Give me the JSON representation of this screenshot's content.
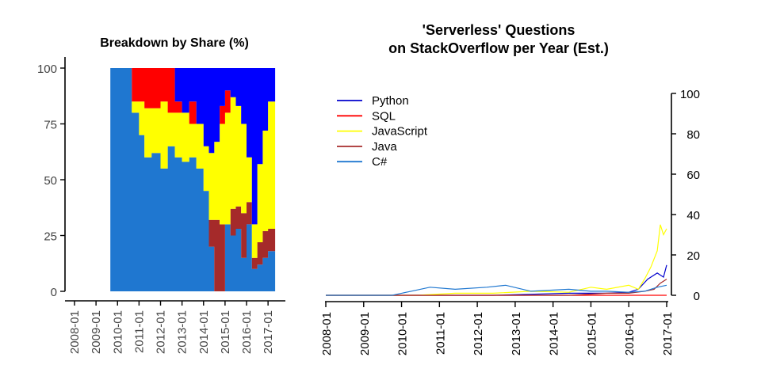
{
  "chart_data": [
    {
      "type": "area",
      "stacked": "percent",
      "title": "Breakdown by Share (%)",
      "xlabel": "",
      "ylabel": "",
      "ylim": [
        0,
        100
      ],
      "y_ticks": [
        "0",
        "25",
        "50",
        "75",
        "100"
      ],
      "x_ticks": [
        "2008-01",
        "2009-01",
        "2010-01",
        "2011-01",
        "2012-01",
        "2013-01",
        "2014-01",
        "2015-01",
        "2016-01",
        "2017-01"
      ],
      "grid": false,
      "legend": "none",
      "x": [
        "2009-09",
        "2010-01",
        "2010-06",
        "2010-09",
        "2011-01",
        "2011-04",
        "2011-08",
        "2012-01",
        "2012-05",
        "2012-09",
        "2013-01",
        "2013-05",
        "2013-09",
        "2014-01",
        "2014-04",
        "2014-07",
        "2014-10",
        "2015-01",
        "2015-04",
        "2015-07",
        "2015-10",
        "2016-01",
        "2016-04",
        "2016-07",
        "2016-10",
        "2017-01"
      ],
      "series": [
        {
          "name": "C#",
          "color": "#1f77d0",
          "values": [
            100,
            100,
            100,
            80,
            70,
            60,
            62,
            55,
            65,
            60,
            58,
            60,
            55,
            45,
            20,
            0,
            0,
            30,
            25,
            28,
            15,
            30,
            10,
            12,
            15,
            18
          ]
        },
        {
          "name": "Java",
          "color": "#a52a2a",
          "values": [
            0,
            0,
            0,
            0,
            0,
            0,
            0,
            0,
            0,
            0,
            0,
            0,
            0,
            0,
            12,
            32,
            30,
            0,
            12,
            10,
            20,
            10,
            5,
            10,
            12,
            10
          ]
        },
        {
          "name": "JavaScript",
          "color": "#ffff00",
          "values": [
            0,
            0,
            0,
            5,
            15,
            22,
            20,
            30,
            15,
            20,
            22,
            15,
            20,
            20,
            30,
            35,
            45,
            50,
            50,
            45,
            40,
            20,
            15,
            35,
            45,
            57
          ]
        },
        {
          "name": "SQL",
          "color": "#ff0000",
          "values": [
            0,
            0,
            0,
            15,
            15,
            18,
            18,
            15,
            20,
            5,
            0,
            10,
            0,
            0,
            0,
            0,
            8,
            10,
            0,
            0,
            0,
            0,
            0,
            0,
            0,
            0
          ]
        },
        {
          "name": "Python",
          "color": "#0000ff",
          "values": [
            0,
            0,
            0,
            0,
            0,
            0,
            0,
            0,
            0,
            15,
            20,
            15,
            25,
            35,
            38,
            33,
            17,
            10,
            13,
            17,
            25,
            40,
            70,
            43,
            28,
            15
          ]
        }
      ]
    },
    {
      "type": "line",
      "title": "'Serverless' Questions\non StackOverflow per Year (Est.)",
      "xlabel": "",
      "ylabel": "",
      "ylim": [
        0,
        100
      ],
      "y_ticks": [
        "0",
        "20",
        "40",
        "60",
        "80",
        "100"
      ],
      "x_ticks": [
        "2008-01",
        "2009-01",
        "2010-01",
        "2011-01",
        "2012-01",
        "2013-01",
        "2014-01",
        "2015-01",
        "2016-01",
        "2017-01"
      ],
      "grid": false,
      "legend": "top-left",
      "series": [
        {
          "name": "Python",
          "color": "#0000cd",
          "x": [
            "2008-01",
            "2012-06",
            "2013-06",
            "2014-06",
            "2015-06",
            "2016-01",
            "2016-04",
            "2016-07",
            "2016-10",
            "2016-12",
            "2017-01"
          ],
          "values": [
            0,
            0,
            0.5,
            1,
            1,
            1.5,
            3,
            8,
            11,
            9,
            15
          ]
        },
        {
          "name": "SQL",
          "color": "#ff0000",
          "x": [
            "2008-01",
            "2017-01"
          ],
          "values": [
            0,
            0
          ]
        },
        {
          "name": "JavaScript",
          "color": "#ffff00",
          "x": [
            "2008-01",
            "2010-06",
            "2011-06",
            "2012-06",
            "2013-06",
            "2014-06",
            "2015-01",
            "2015-06",
            "2016-01",
            "2016-04",
            "2016-06",
            "2016-08",
            "2016-10",
            "2016-11",
            "2016-12",
            "2017-01"
          ],
          "values": [
            0,
            0,
            1,
            1,
            2,
            1.5,
            4,
            3,
            5,
            3,
            8,
            14,
            22,
            35,
            30,
            33
          ]
        },
        {
          "name": "Java",
          "color": "#a52a2a",
          "x": [
            "2008-01",
            "2014-06",
            "2015-06",
            "2016-01",
            "2016-06",
            "2016-09",
            "2016-11",
            "2017-01"
          ],
          "values": [
            0,
            0,
            1,
            1,
            2,
            3,
            6,
            8
          ]
        },
        {
          "name": "C#",
          "color": "#1f77d0",
          "x": [
            "2008-01",
            "2009-10",
            "2010-04",
            "2010-10",
            "2011-06",
            "2012-04",
            "2012-10",
            "2013-06",
            "2014-06",
            "2015-01",
            "2015-06",
            "2016-01",
            "2016-06",
            "2016-10",
            "2017-01"
          ],
          "values": [
            0,
            0,
            2,
            4,
            3,
            4,
            5,
            2,
            3,
            2,
            2,
            1.5,
            2,
            4,
            5
          ]
        }
      ]
    }
  ]
}
